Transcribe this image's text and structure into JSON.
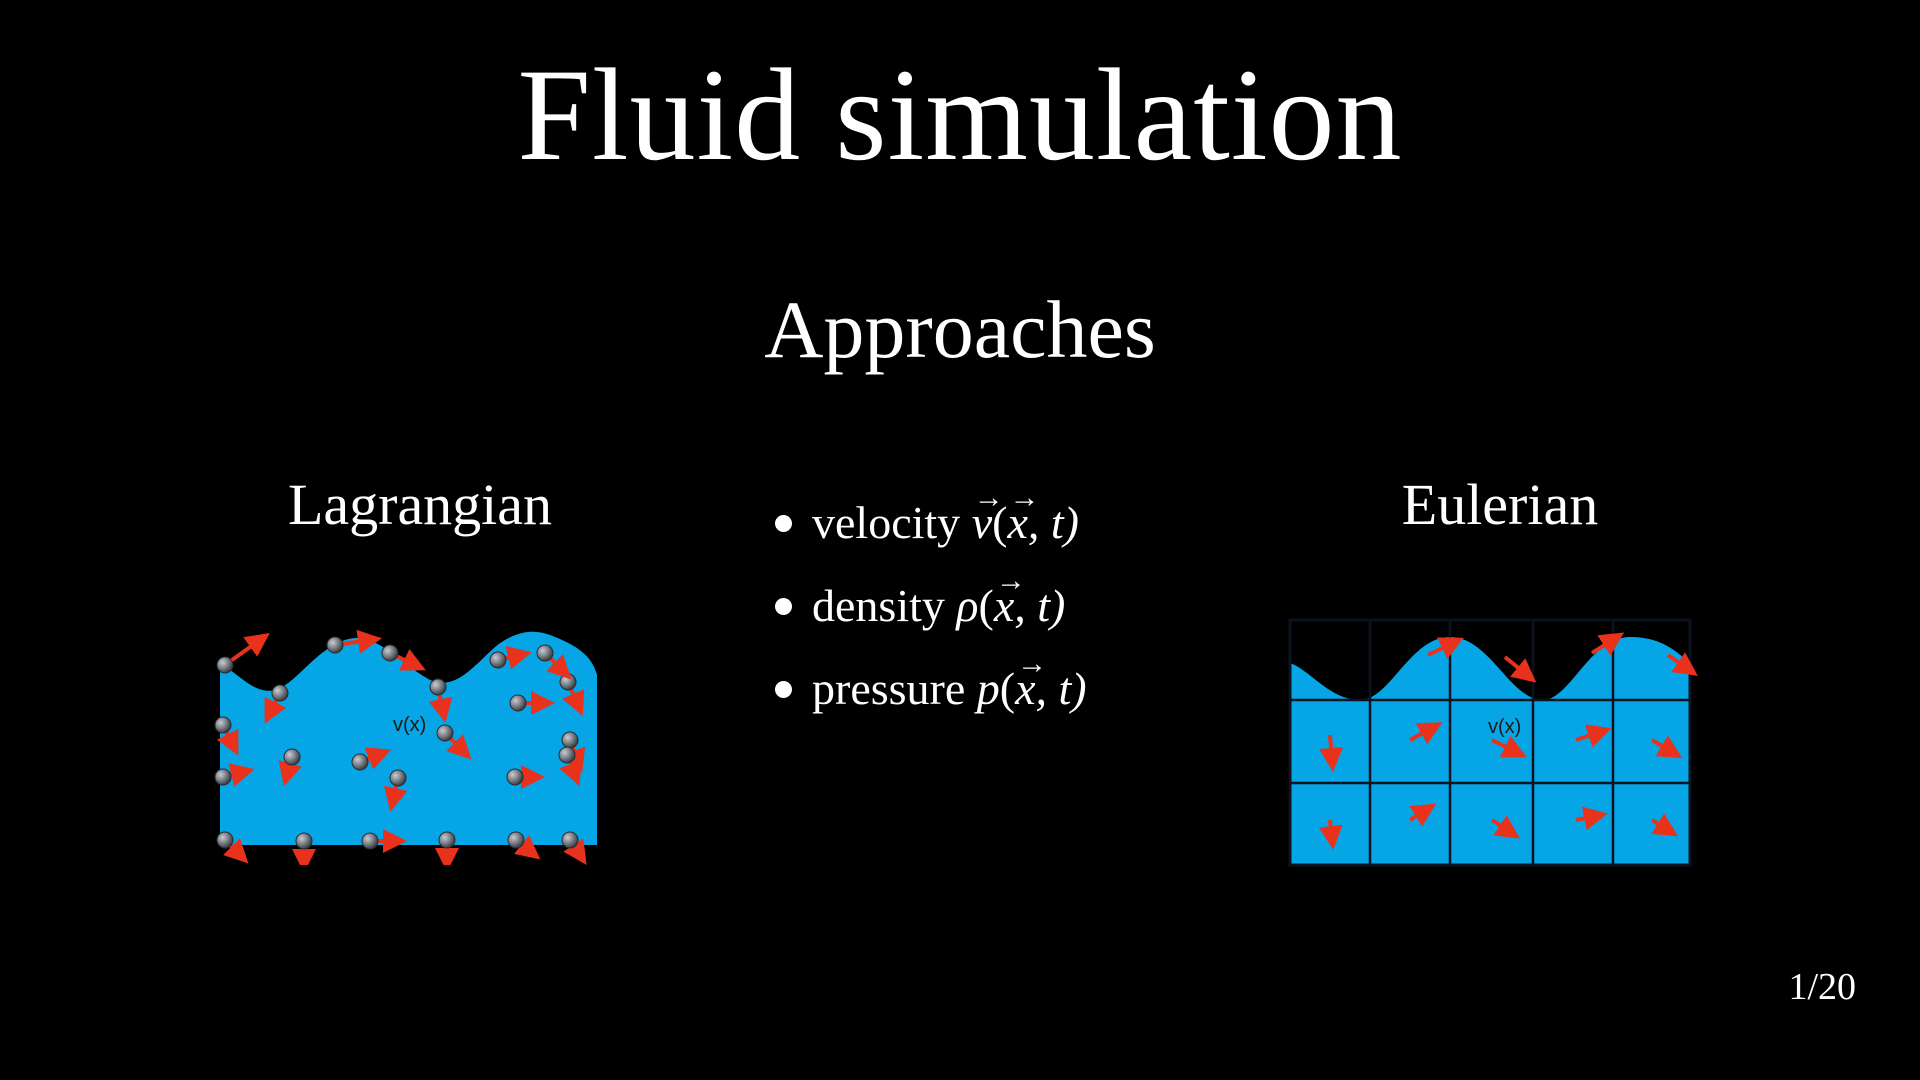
{
  "slide": {
    "title": "Fluid simulation",
    "subtitle": "Approaches",
    "page_number": "1/20"
  },
  "lagrangian": {
    "heading": "Lagrangian",
    "velocity_label": "v(x)"
  },
  "eulerian": {
    "heading": "Eulerian",
    "velocity_label": "v(x)"
  },
  "quantities": [
    {
      "name": "velocity",
      "fn": "v",
      "vector": true,
      "open": "(",
      "arg": "x",
      "rest": ", t)"
    },
    {
      "name": "density",
      "fn": "ρ",
      "vector": false,
      "open": "(",
      "arg": "x",
      "rest": ", t)"
    },
    {
      "name": "pressure",
      "fn": "p",
      "vector": false,
      "open": "(",
      "arg": "x",
      "rest": ", t)"
    }
  ],
  "colors": {
    "background": "#000000",
    "text": "#ffffff",
    "fluid": "#05a5e6",
    "arrow": "#e8321c",
    "particle": "#7b8088",
    "grid_line": "#0b1320"
  }
}
